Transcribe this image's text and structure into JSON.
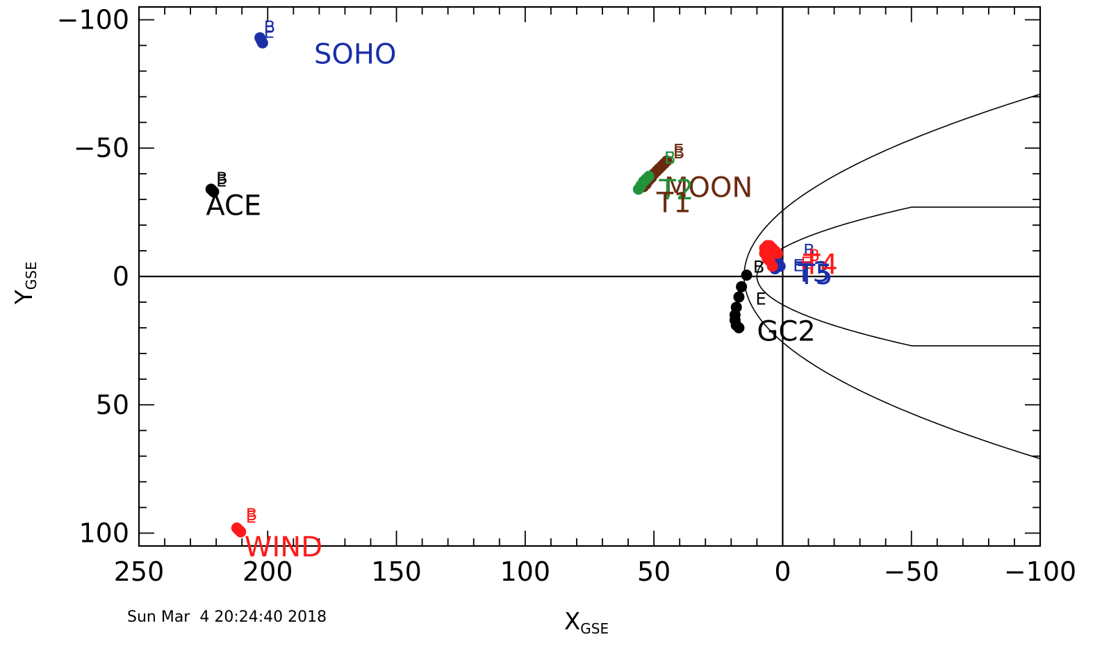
{
  "timestamp": "Sun Mar  4 20:24:40 2018",
  "chart_data": {
    "type": "scatter",
    "xlabel": "X",
    "xlabel_sub": "GSE",
    "ylabel": "Y",
    "ylabel_sub": "GSE",
    "xlim": [
      250,
      -100
    ],
    "ylim": [
      -105,
      105
    ],
    "x_ticks": [
      250,
      200,
      150,
      100,
      50,
      0,
      -50,
      -100
    ],
    "x_tick_labels": [
      "250",
      "200",
      "150",
      "100",
      "50",
      "0",
      "−50",
      "−100"
    ],
    "y_ticks": [
      -100,
      -50,
      0,
      50,
      100
    ],
    "y_tick_labels": [
      "−100",
      "−50",
      "0",
      "50",
      "100"
    ],
    "begin_marker": "B",
    "end_marker": "E",
    "colors": {
      "black": "#000000",
      "blue": "#1a2fa8",
      "green": "#22933a",
      "brown": "#6b2a10",
      "red": "#ff1a1a"
    },
    "series": [
      {
        "name": "SOHO",
        "color": "#1a2fa8",
        "x": [
          203,
          202.5,
          202
        ],
        "y": [
          -93,
          -92,
          -91
        ],
        "label_at": [
          182,
          -83
        ],
        "be_at": [
          [
            201.5,
            -95
          ],
          [
            201.5,
            -93
          ]
        ]
      },
      {
        "name": "ACE",
        "color": "#000000",
        "x": [
          222,
          221.5,
          221
        ],
        "y": [
          -34,
          -33.5,
          -33
        ],
        "label_at": [
          224,
          -24
        ],
        "be_at": [
          [
            220,
            -36
          ],
          [
            220,
            -35
          ]
        ]
      },
      {
        "name": "MOON",
        "color": "#6b2a10",
        "x": [
          54,
          53,
          52,
          51,
          50,
          49,
          48,
          47,
          46,
          45
        ],
        "y": [
          -35,
          -36,
          -37.5,
          -38.5,
          -40,
          -41,
          -42,
          -43,
          -44,
          -45
        ],
        "label_at": [
          46,
          -31
        ],
        "be_at": [
          [
            42.5,
            -46
          ],
          [
            42.5,
            -47
          ]
        ]
      },
      {
        "name": "T2",
        "color": "#22933a",
        "x": [
          56,
          55,
          54,
          53,
          52
        ],
        "y": [
          -34,
          -35.5,
          -37,
          -38,
          -39
        ],
        "label_at": [
          48,
          -30
        ],
        "be_at": [
          [
            46,
            -44
          ],
          [
            46,
            -44
          ]
        ]
      },
      {
        "name": "T1",
        "color": "#6b2a10",
        "x": [],
        "y": [],
        "label_at": [
          49,
          -25
        ],
        "be_at": []
      },
      {
        "name": "GC2",
        "color": "#000000",
        "x": [
          14,
          16,
          17,
          18,
          18.5,
          18.5,
          18,
          17
        ],
        "y": [
          -0.5,
          4,
          8,
          12,
          15,
          17,
          19,
          20
        ],
        "label_at": [
          10,
          25
        ],
        "be_at": [
          [
            11.5,
            -1.5
          ],
          [
            10.5,
            11
          ]
        ]
      },
      {
        "name": "T3",
        "color": "#1a2fa8",
        "x": [
          1,
          2,
          3,
          4,
          5,
          4,
          3
        ],
        "y": [
          -4,
          -6,
          -8,
          -9,
          -7,
          -5,
          -3
        ],
        "label_at": [
          -5,
          2
        ],
        "be_at": [
          [
            -8,
            -8
          ],
          [
            -4,
            -2
          ]
        ]
      },
      {
        "name": "T4",
        "color": "#ff1a1a",
        "x": [
          2,
          3,
          4,
          5,
          6,
          7,
          7,
          6,
          5,
          4
        ],
        "y": [
          -9,
          -10,
          -11,
          -12,
          -12,
          -11,
          -9,
          -7,
          -6,
          -4
        ],
        "label_at": [
          -8,
          -1
        ],
        "be_at": [
          [
            -10,
            -6
          ],
          [
            -7,
            -3
          ]
        ]
      },
      {
        "name": "T5",
        "color": "#1a2fa8",
        "x": [],
        "y": [],
        "label_at": [
          -6,
          3
        ],
        "be_at": []
      },
      {
        "name": "WIND",
        "color": "#ff1a1a",
        "x": [
          212,
          211.5,
          211,
          210.5
        ],
        "y": [
          98,
          98.5,
          99,
          99.5
        ],
        "label_at": [
          209,
          109
        ],
        "be_at": [
          [
            208.5,
            95
          ],
          [
            208.5,
            96
          ]
        ]
      }
    ],
    "boundaries": {
      "bow_shock_nose_x": 15,
      "bow_shock_flank_y_at_x_minus100": 71,
      "magnetopause_nose_x": 10,
      "magnetopause_tail_y": 27
    }
  }
}
